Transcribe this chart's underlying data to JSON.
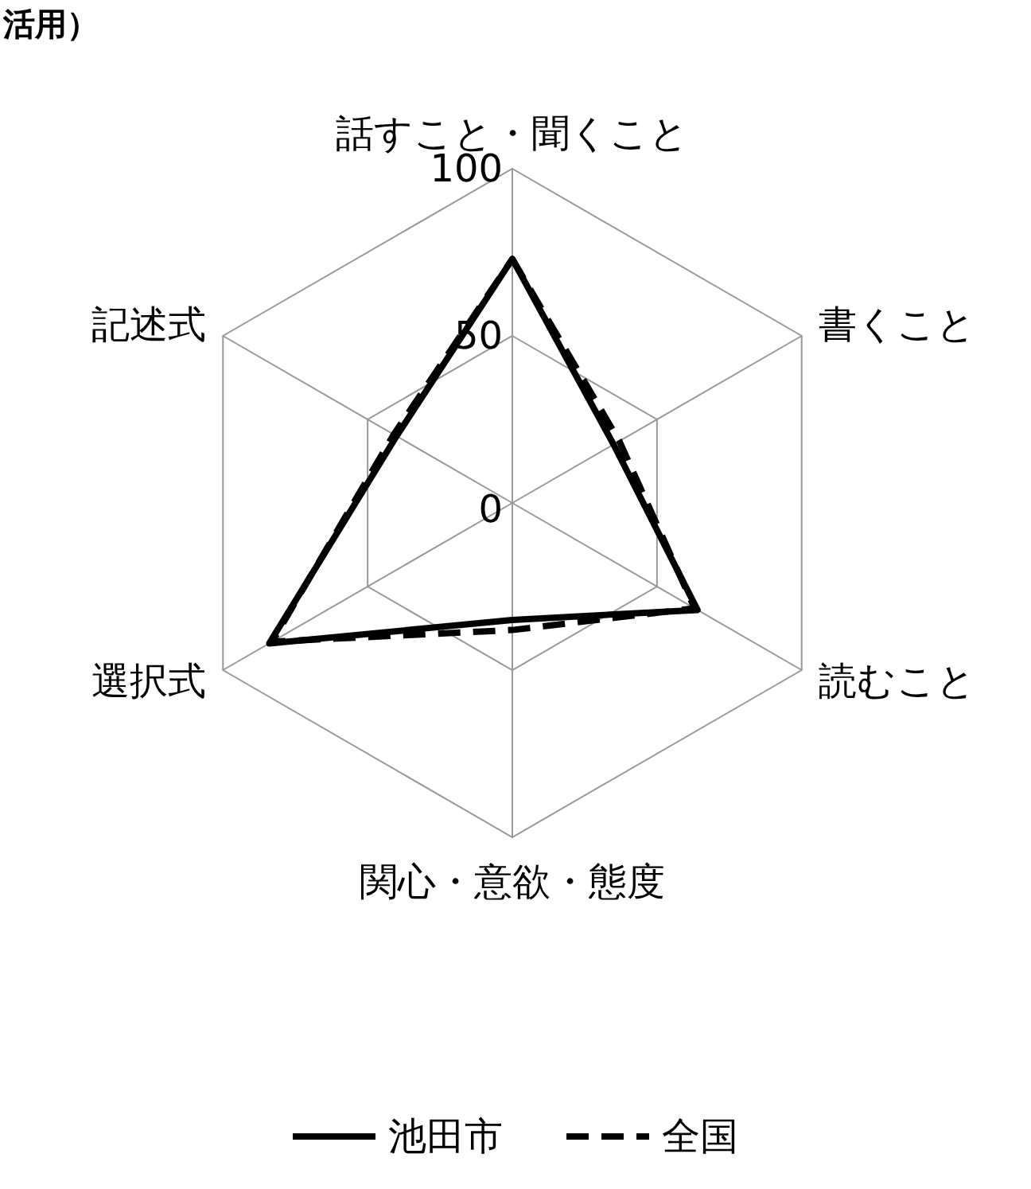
{
  "chart_data": {
    "type": "radar",
    "title": "活用）",
    "categories": [
      "話すこと・聞くこと",
      "書くこと",
      "読むこと",
      "関心・意欲・態度",
      "選択式",
      "記述式"
    ],
    "ylim": [
      0,
      100
    ],
    "yticks": [
      0,
      50,
      100
    ],
    "grid": true,
    "legend": "bottom",
    "series": [
      {
        "name": "池田市",
        "color": "#000000",
        "line_style": "solid",
        "values": [
          73,
          35,
          64,
          35,
          84,
          40
        ]
      },
      {
        "name": "全国",
        "color": "#000000",
        "line_style": "dashed",
        "values": [
          73,
          37,
          63,
          38,
          83,
          41
        ]
      }
    ]
  }
}
